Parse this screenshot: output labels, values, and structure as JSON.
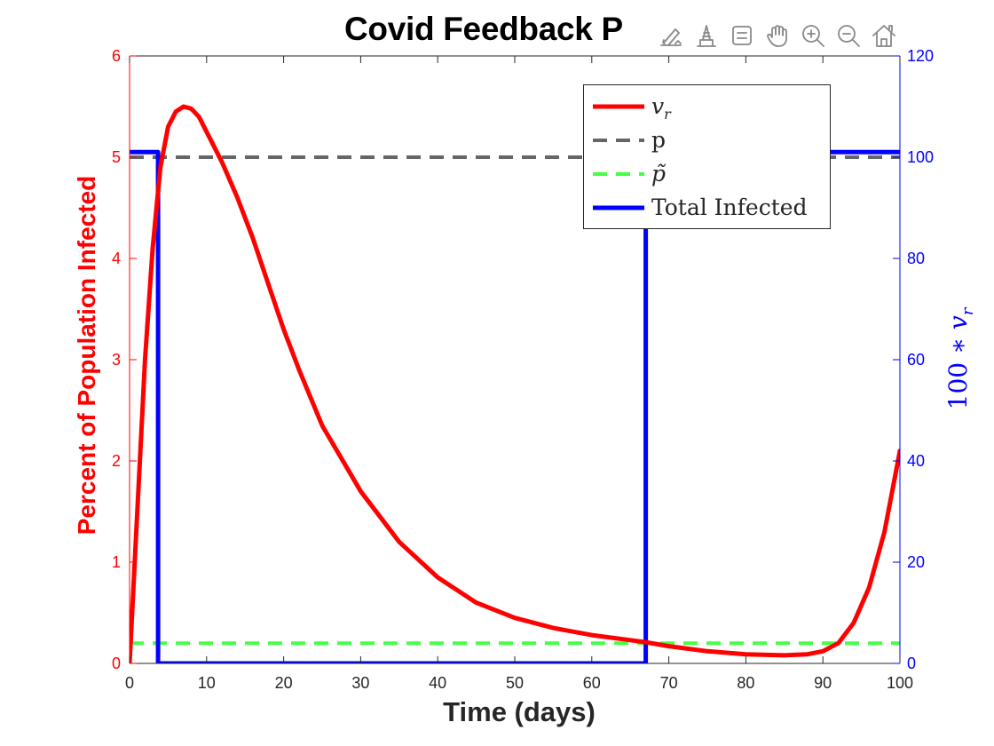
{
  "figure": {
    "title": "Covid Feedback P",
    "xlabel": "Time (days)",
    "ylabel_left": "Percent of Population Infected",
    "ylabel_right_prefix": "100 ∗ ",
    "ylabel_right_var": "v",
    "ylabel_right_sub": "r"
  },
  "toolbar": [
    {
      "name": "brush-edit-icon"
    },
    {
      "name": "data-tips-icon"
    },
    {
      "name": "restore-view-icon"
    },
    {
      "name": "pan-hand-icon"
    },
    {
      "name": "zoom-in-icon"
    },
    {
      "name": "zoom-out-icon"
    },
    {
      "name": "home-icon"
    }
  ],
  "legend": [
    {
      "label": "v",
      "sub": "r",
      "color": "#ff0000",
      "dash": "solid"
    },
    {
      "label": "p",
      "color": "#666666",
      "dash": "dashed"
    },
    {
      "label": "p̃",
      "color": "#44ff44",
      "dash": "dashed"
    },
    {
      "label": "Total Infected",
      "color": "#0000ff",
      "dash": "solid"
    }
  ],
  "colors": {
    "left_axis": "#ff0000",
    "right_axis": "#0000ff",
    "bottom_axis": "#262626"
  },
  "chart_data": {
    "type": "line",
    "title": "Covid Feedback P",
    "xlabel": "Time (days)",
    "ylabel": "Percent of Population Infected",
    "ylabel_right": "100 ∗ v_r",
    "xlim": [
      0,
      100
    ],
    "ylim": [
      0,
      6
    ],
    "ylim_right": [
      0,
      120
    ],
    "xticks": [
      0,
      10,
      20,
      30,
      40,
      50,
      60,
      70,
      80,
      90,
      100
    ],
    "yticks_left": [
      0,
      1,
      2,
      3,
      4,
      5,
      6
    ],
    "yticks_right": [
      0,
      20,
      40,
      60,
      80,
      100,
      120
    ],
    "grid": false,
    "legend_position": "top-right",
    "series": [
      {
        "name": "v_r",
        "axis": "left",
        "color": "#ff0000",
        "style": "solid",
        "x": [
          0,
          1,
          2,
          3,
          4,
          5,
          6,
          7,
          8,
          9,
          10,
          12,
          14,
          16,
          18,
          20,
          22,
          25,
          30,
          35,
          40,
          45,
          50,
          55,
          60,
          65,
          67,
          70,
          75,
          80,
          85,
          88,
          90,
          92,
          94,
          96,
          98,
          100
        ],
        "y": [
          0,
          1.5,
          3.0,
          4.1,
          4.9,
          5.3,
          5.45,
          5.5,
          5.48,
          5.4,
          5.25,
          4.95,
          4.6,
          4.2,
          3.75,
          3.3,
          2.9,
          2.35,
          1.7,
          1.2,
          0.85,
          0.6,
          0.45,
          0.35,
          0.28,
          0.23,
          0.21,
          0.17,
          0.12,
          0.09,
          0.08,
          0.09,
          0.12,
          0.2,
          0.4,
          0.75,
          1.3,
          2.1
        ]
      },
      {
        "name": "p",
        "axis": "left",
        "color": "#666666",
        "style": "dashed",
        "x": [
          0,
          100
        ],
        "y": [
          5,
          5
        ]
      },
      {
        "name": "p̃",
        "axis": "left",
        "color": "#44ff44",
        "style": "dashed",
        "x": [
          0,
          100
        ],
        "y": [
          0.2,
          0.2
        ]
      },
      {
        "name": "Total Infected",
        "axis": "right",
        "color": "#0000ff",
        "style": "solid",
        "x": [
          0,
          3.7,
          3.7,
          67,
          67,
          100
        ],
        "y": [
          101,
          101,
          0,
          0,
          101,
          101
        ]
      }
    ]
  }
}
